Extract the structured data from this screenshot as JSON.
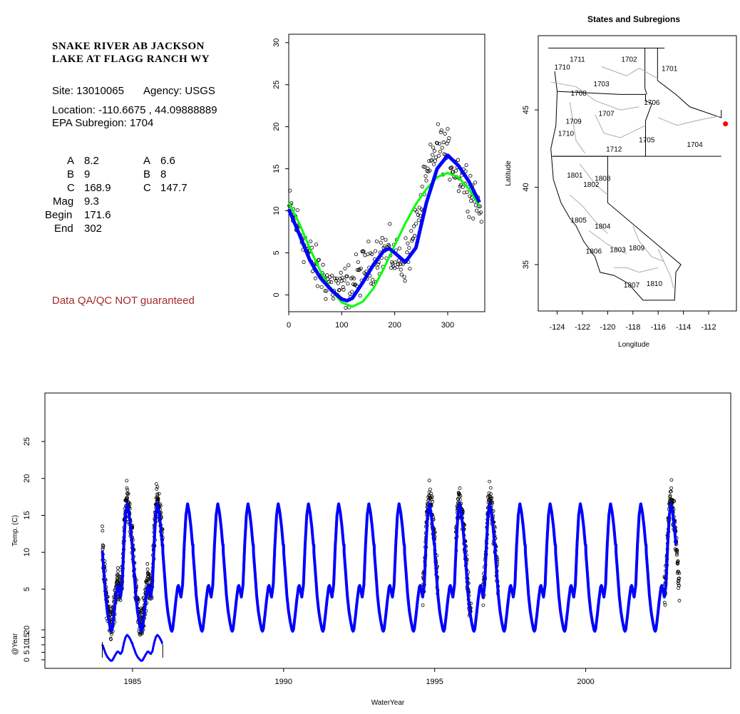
{
  "header": {
    "title_line1": "SNAKE RIVER AB JACKSON",
    "title_line2": "LAKE AT FLAGG RANCH WY",
    "site_label": "Site: 13010065",
    "agency_label": "Agency: USGS",
    "location": "Location: -110.6675 , 44.09888889",
    "subregion": "EPA Subregion: 1704"
  },
  "params": {
    "left": [
      {
        "k": "A",
        "v": "8.2"
      },
      {
        "k": "B",
        "v": "9"
      },
      {
        "k": "C",
        "v": "168.9"
      },
      {
        "k": "Mag",
        "v": "9.3"
      },
      {
        "k": "Begin",
        "v": "171.6"
      },
      {
        "k": "End",
        "v": "302"
      }
    ],
    "right": [
      {
        "k": "A",
        "v": "6.6"
      },
      {
        "k": "B",
        "v": "8"
      },
      {
        "k": "C",
        "v": "147.7"
      }
    ]
  },
  "qa_note": "Data QA/QC NOT guaranteed",
  "colors": {
    "points": "#000000",
    "fit_blue": "#0000ff",
    "fit_green": "#00ff00",
    "site": "#ff0000",
    "qa_text": "#a52a2a"
  },
  "chart_data": [
    {
      "type": "scatter",
      "name": "day-of-year",
      "xlim": [
        0,
        370
      ],
      "ylim": [
        -2,
        31
      ],
      "xticks": [
        0,
        100,
        200,
        300
      ],
      "yticks": [
        0,
        5,
        10,
        15,
        20,
        25,
        30
      ],
      "grid": false,
      "series": [
        {
          "style": "points",
          "x": [
            0,
            10,
            20,
            30,
            40,
            50,
            60,
            70,
            80,
            90,
            100,
            110,
            120,
            130,
            140,
            150,
            160,
            170,
            180,
            190,
            200,
            210,
            220,
            230,
            240,
            250,
            260,
            270,
            280,
            290,
            300,
            310,
            320,
            330,
            340,
            350,
            360
          ],
          "y": [
            10.5,
            9.2,
            7.8,
            6.0,
            4.5,
            3.2,
            2.5,
            1.8,
            1.2,
            0.8,
            0.7,
            1.0,
            1.5,
            2.2,
            3.0,
            3.6,
            4.2,
            4.9,
            5.4,
            5.0,
            4.4,
            4.0,
            4.2,
            5.5,
            8.0,
            11.0,
            13.5,
            15.8,
            17.8,
            17.5,
            16.8,
            15.6,
            14.6,
            13.8,
            13.0,
            11.8,
            10.5
          ]
        },
        {
          "style": "line",
          "color": "#0000ff",
          "x": [
            0,
            20,
            40,
            60,
            80,
            100,
            110,
            120,
            140,
            160,
            180,
            190,
            200,
            220,
            240,
            260,
            280,
            300,
            320,
            340,
            360
          ],
          "y": [
            10.2,
            7.2,
            4.1,
            2.0,
            0.6,
            -0.5,
            -0.7,
            -0.4,
            1.5,
            3.6,
            5.3,
            5.5,
            5.0,
            3.9,
            5.6,
            11.0,
            15.0,
            16.6,
            15.4,
            13.5,
            11.0
          ]
        },
        {
          "style": "line",
          "color": "#00ff00",
          "x": [
            0,
            20,
            40,
            60,
            80,
            100,
            120,
            140,
            160,
            180,
            200,
            220,
            240,
            260,
            280,
            300,
            320,
            340,
            360
          ],
          "y": [
            11.0,
            8.5,
            5.5,
            2.8,
            0.6,
            -0.9,
            -1.4,
            -0.8,
            0.8,
            3.2,
            5.9,
            8.5,
            10.8,
            12.6,
            14.0,
            14.5,
            14.0,
            12.6,
            10.6
          ]
        }
      ]
    },
    {
      "type": "scatter",
      "name": "map",
      "title": "States and Subregions",
      "xlabel": "Longitude",
      "ylabel": "Latitude",
      "xlim": [
        -125.5,
        -109.8
      ],
      "ylim": [
        32.0,
        49.8
      ],
      "xticks": [
        -124,
        -122,
        -120,
        -118,
        -116,
        -114,
        -112
      ],
      "yticks": [
        35,
        40,
        45
      ],
      "site": {
        "lon": -110.6675,
        "lat": 44.09888889
      },
      "regions": [
        {
          "id": "1702",
          "lon": -118.3,
          "lat": 48.3
        },
        {
          "id": "1701",
          "lon": -115.1,
          "lat": 47.7
        },
        {
          "id": "1711",
          "lon": -122.4,
          "lat": 48.3
        },
        {
          "id": "1710",
          "lon": -123.6,
          "lat": 47.8
        },
        {
          "id": "1703",
          "lon": -120.5,
          "lat": 46.7
        },
        {
          "id": "1708",
          "lon": -122.3,
          "lat": 46.1
        },
        {
          "id": "1706",
          "lon": -116.5,
          "lat": 45.5
        },
        {
          "id": "1707",
          "lon": -120.1,
          "lat": 44.8
        },
        {
          "id": "1709",
          "lon": -122.7,
          "lat": 44.3
        },
        {
          "id": "1710",
          "lon": -123.3,
          "lat": 43.5
        },
        {
          "id": "1705",
          "lon": -116.9,
          "lat": 43.1
        },
        {
          "id": "1704",
          "lon": -113.1,
          "lat": 42.8
        },
        {
          "id": "1712",
          "lon": -119.5,
          "lat": 42.5
        },
        {
          "id": "1801",
          "lon": -122.6,
          "lat": 40.8
        },
        {
          "id": "1808",
          "lon": -120.4,
          "lat": 40.6
        },
        {
          "id": "1802",
          "lon": -121.3,
          "lat": 40.2
        },
        {
          "id": "1805",
          "lon": -122.3,
          "lat": 37.9
        },
        {
          "id": "1804",
          "lon": -120.4,
          "lat": 37.5
        },
        {
          "id": "1806",
          "lon": -121.1,
          "lat": 35.9
        },
        {
          "id": "1803",
          "lon": -119.2,
          "lat": 36.0
        },
        {
          "id": "1809",
          "lon": -117.7,
          "lat": 36.1
        },
        {
          "id": "1807",
          "lon": -118.1,
          "lat": 33.7
        },
        {
          "id": "1810",
          "lon": -116.3,
          "lat": 33.8
        }
      ]
    },
    {
      "type": "line",
      "name": "time-series",
      "xlabel": "WaterYear",
      "ylabel": "Temp. (C)",
      "ylabel2": "@Year",
      "xlim": [
        1982.1,
        2004.8
      ],
      "ylim": [
        -2,
        30
      ],
      "xticks": [
        1985,
        1990,
        1995,
        2000
      ],
      "yticks": [
        5,
        10,
        15,
        20,
        25
      ],
      "yticks2": [
        0,
        5,
        10,
        15,
        20
      ],
      "fit": {
        "mean": 8.2,
        "amp": 8.7,
        "start": 1984.0,
        "end": 2003.0
      },
      "obs_periods": [
        [
          1984.0,
          1986.0
        ],
        [
          1994.6,
          1995.1
        ],
        [
          1995.7,
          1996.2
        ],
        [
          1996.6,
          1997.1
        ],
        [
          2002.6,
          2003.1
        ]
      ],
      "subplot": {
        "start": 1984.0,
        "end": 1986.0
      }
    }
  ]
}
